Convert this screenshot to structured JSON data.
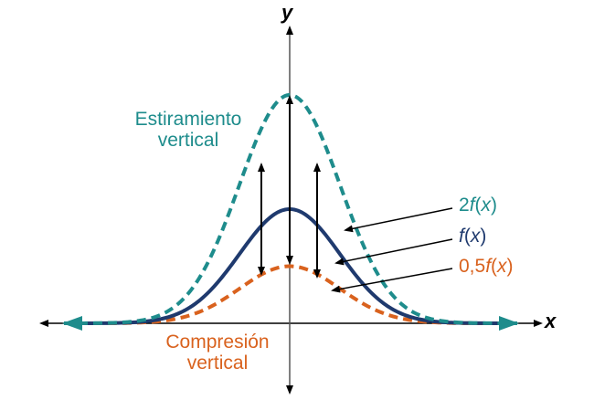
{
  "axes": {
    "x_label": "x",
    "y_label": "y"
  },
  "annotations": {
    "stretch": {
      "line1": "Estiramiento",
      "line2": "vertical"
    },
    "compression": {
      "line1": "Compresión",
      "line2": "vertical"
    }
  },
  "legend": [
    {
      "id": "two_f",
      "prefix": "2",
      "func": "f",
      "open": "(",
      "var": "x",
      "close": ")",
      "color": "#1e8c8c"
    },
    {
      "id": "f",
      "prefix": "",
      "func": "f",
      "open": "(",
      "var": "x",
      "close": ")",
      "color": "#1f3a6e"
    },
    {
      "id": "half_f",
      "prefix": "0,5",
      "func": "f",
      "open": "(",
      "var": "x",
      "close": ")",
      "color": "#d9621e"
    }
  ],
  "colors": {
    "teal": "#1e8c8c",
    "navy": "#1f3a6e",
    "orange": "#d9621e",
    "axis": "#000000"
  },
  "chart_data": {
    "type": "line",
    "title": "",
    "xlabel": "x",
    "ylabel": "y",
    "grid": false,
    "series": [
      {
        "name": "2f(x)",
        "style": "dashed",
        "color": "#1e8c8c",
        "peak": 2.0
      },
      {
        "name": "f(x)",
        "style": "solid",
        "color": "#1f3a6e",
        "peak": 1.0
      },
      {
        "name": "0,5f(x)",
        "style": "dashed",
        "color": "#d9621e",
        "peak": 0.5
      }
    ],
    "shape": "bell curve centered at x=0",
    "annotations": [
      "Estiramiento vertical",
      "Compresión vertical"
    ]
  }
}
